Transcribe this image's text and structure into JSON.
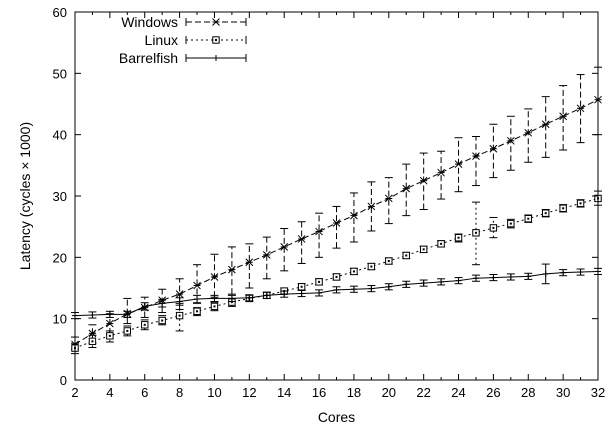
{
  "chart_data": {
    "type": "line",
    "title": "",
    "xlabel": "Cores",
    "ylabel": "Latency (cycles × 1000)",
    "xlim": [
      2,
      32
    ],
    "ylim": [
      0,
      60
    ],
    "x_ticks": [
      2,
      4,
      6,
      8,
      10,
      12,
      14,
      16,
      18,
      20,
      22,
      24,
      26,
      28,
      30,
      32
    ],
    "y_ticks": [
      0,
      10,
      20,
      30,
      40,
      50,
      60
    ],
    "grid": false,
    "legend_position": "top-left",
    "series": [
      {
        "name": "Windows",
        "marker": "asterisk",
        "line_style": "dashed",
        "points": [
          {
            "x": 2,
            "y": 5.8,
            "lo": 5.0,
            "hi": 7.0
          },
          {
            "x": 3,
            "y": 7.6,
            "lo": 6.0,
            "hi": 9.0
          },
          {
            "x": 4,
            "y": 9.2,
            "lo": 7.5,
            "hi": 10.8
          },
          {
            "x": 5,
            "y": 10.8,
            "lo": 9.2,
            "hi": 13.3
          },
          {
            "x": 6,
            "y": 11.8,
            "lo": 10.2,
            "hi": 13.5
          },
          {
            "x": 7,
            "y": 13.0,
            "lo": 11.0,
            "hi": 14.8
          },
          {
            "x": 8,
            "y": 14.0,
            "lo": 11.5,
            "hi": 16.5
          },
          {
            "x": 9,
            "y": 15.4,
            "lo": 12.5,
            "hi": 18.8
          },
          {
            "x": 10,
            "y": 16.8,
            "lo": 13.5,
            "hi": 20.5
          },
          {
            "x": 11,
            "y": 18.0,
            "lo": 14.0,
            "hi": 21.7
          },
          {
            "x": 12,
            "y": 19.2,
            "lo": 15.0,
            "hi": 22.2
          },
          {
            "x": 13,
            "y": 20.4,
            "lo": 16.5,
            "hi": 23.3
          },
          {
            "x": 14,
            "y": 21.7,
            "lo": 17.8,
            "hi": 24.7
          },
          {
            "x": 15,
            "y": 23.0,
            "lo": 19.0,
            "hi": 25.8
          },
          {
            "x": 16,
            "y": 24.2,
            "lo": 20.0,
            "hi": 27.2
          },
          {
            "x": 17,
            "y": 25.6,
            "lo": 21.5,
            "hi": 28.3
          },
          {
            "x": 18,
            "y": 26.8,
            "lo": 22.5,
            "hi": 30.5
          },
          {
            "x": 19,
            "y": 28.3,
            "lo": 24.3,
            "hi": 32.3
          },
          {
            "x": 20,
            "y": 29.6,
            "lo": 25.5,
            "hi": 33.0
          },
          {
            "x": 21,
            "y": 31.2,
            "lo": 26.8,
            "hi": 35.2
          },
          {
            "x": 22,
            "y": 32.5,
            "lo": 27.8,
            "hi": 37.0
          },
          {
            "x": 23,
            "y": 33.8,
            "lo": 29.5,
            "hi": 37.3
          },
          {
            "x": 24,
            "y": 35.2,
            "lo": 30.7,
            "hi": 39.5
          },
          {
            "x": 25,
            "y": 36.5,
            "lo": 31.7,
            "hi": 39.7
          },
          {
            "x": 26,
            "y": 37.7,
            "lo": 33.0,
            "hi": 41.7
          },
          {
            "x": 27,
            "y": 39.0,
            "lo": 34.2,
            "hi": 43.0
          },
          {
            "x": 28,
            "y": 40.3,
            "lo": 35.5,
            "hi": 44.2
          },
          {
            "x": 29,
            "y": 41.7,
            "lo": 36.3,
            "hi": 46.2
          },
          {
            "x": 30,
            "y": 43.0,
            "lo": 37.5,
            "hi": 48.0
          },
          {
            "x": 31,
            "y": 44.3,
            "lo": 38.7,
            "hi": 49.8
          },
          {
            "x": 32,
            "y": 45.7,
            "lo": 40.0,
            "hi": 51.0
          }
        ]
      },
      {
        "name": "Linux",
        "marker": "square",
        "line_style": "dotted",
        "points": [
          {
            "x": 2,
            "y": 5.2,
            "lo": 4.3,
            "hi": 6.0
          },
          {
            "x": 3,
            "y": 6.3,
            "lo": 5.3,
            "hi": 7.3
          },
          {
            "x": 4,
            "y": 7.2,
            "lo": 6.2,
            "hi": 8.0
          },
          {
            "x": 5,
            "y": 8.0,
            "lo": 7.2,
            "hi": 8.8
          },
          {
            "x": 6,
            "y": 9.0,
            "lo": 8.2,
            "hi": 9.8
          },
          {
            "x": 7,
            "y": 9.7,
            "lo": 9.0,
            "hi": 10.5
          },
          {
            "x": 8,
            "y": 10.5,
            "lo": 8.0,
            "hi": 12.5
          },
          {
            "x": 9,
            "y": 11.2,
            "lo": 10.5,
            "hi": 11.8
          },
          {
            "x": 10,
            "y": 12.0,
            "lo": 11.3,
            "hi": 12.7
          },
          {
            "x": 11,
            "y": 12.7,
            "lo": 12.0,
            "hi": 13.3
          },
          {
            "x": 12,
            "y": 13.3,
            "lo": 12.8,
            "hi": 13.8
          },
          {
            "x": 13,
            "y": 13.8,
            "lo": 13.3,
            "hi": 14.3
          },
          {
            "x": 14,
            "y": 14.5,
            "lo": 14.0,
            "hi": 15.0
          },
          {
            "x": 15,
            "y": 15.2,
            "lo": 14.7,
            "hi": 15.7
          },
          {
            "x": 16,
            "y": 16.0,
            "lo": 15.5,
            "hi": 16.5
          },
          {
            "x": 17,
            "y": 16.8,
            "lo": 16.3,
            "hi": 17.3
          },
          {
            "x": 18,
            "y": 17.7,
            "lo": 17.2,
            "hi": 18.2
          },
          {
            "x": 19,
            "y": 18.5,
            "lo": 18.0,
            "hi": 19.0
          },
          {
            "x": 20,
            "y": 19.4,
            "lo": 18.9,
            "hi": 19.9
          },
          {
            "x": 21,
            "y": 20.3,
            "lo": 19.8,
            "hi": 20.8
          },
          {
            "x": 22,
            "y": 21.3,
            "lo": 20.8,
            "hi": 21.8
          },
          {
            "x": 23,
            "y": 22.2,
            "lo": 21.7,
            "hi": 22.7
          },
          {
            "x": 24,
            "y": 23.2,
            "lo": 22.5,
            "hi": 23.8
          },
          {
            "x": 25,
            "y": 24.0,
            "lo": 18.8,
            "hi": 29.0
          },
          {
            "x": 26,
            "y": 24.8,
            "lo": 23.2,
            "hi": 26.5
          },
          {
            "x": 27,
            "y": 25.5,
            "lo": 24.8,
            "hi": 26.2
          },
          {
            "x": 28,
            "y": 26.3,
            "lo": 25.7,
            "hi": 26.9
          },
          {
            "x": 29,
            "y": 27.2,
            "lo": 26.6,
            "hi": 27.8
          },
          {
            "x": 30,
            "y": 28.0,
            "lo": 27.4,
            "hi": 28.6
          },
          {
            "x": 31,
            "y": 28.8,
            "lo": 28.2,
            "hi": 29.4
          },
          {
            "x": 32,
            "y": 29.6,
            "lo": 28.5,
            "hi": 30.8
          }
        ]
      },
      {
        "name": "Barrelfish",
        "marker": "plus",
        "line_style": "solid",
        "points": [
          {
            "x": 2,
            "y": 10.5,
            "lo": 10.0,
            "hi": 11.0
          },
          {
            "x": 3,
            "y": 10.6,
            "lo": 10.1,
            "hi": 11.1
          },
          {
            "x": 4,
            "y": 10.7,
            "lo": 10.2,
            "hi": 11.2
          },
          {
            "x": 5,
            "y": 10.7,
            "lo": 10.2,
            "hi": 11.2
          },
          {
            "x": 6,
            "y": 12.0,
            "lo": 11.4,
            "hi": 12.6
          },
          {
            "x": 7,
            "y": 12.5,
            "lo": 11.9,
            "hi": 13.1
          },
          {
            "x": 8,
            "y": 12.8,
            "lo": 12.2,
            "hi": 13.4
          },
          {
            "x": 9,
            "y": 13.2,
            "lo": 12.6,
            "hi": 13.8
          },
          {
            "x": 10,
            "y": 13.3,
            "lo": 12.8,
            "hi": 13.8
          },
          {
            "x": 11,
            "y": 13.3,
            "lo": 12.8,
            "hi": 13.8
          },
          {
            "x": 12,
            "y": 13.4,
            "lo": 12.9,
            "hi": 13.9
          },
          {
            "x": 13,
            "y": 13.8,
            "lo": 13.3,
            "hi": 14.3
          },
          {
            "x": 14,
            "y": 14.0,
            "lo": 13.5,
            "hi": 14.5
          },
          {
            "x": 15,
            "y": 14.1,
            "lo": 13.6,
            "hi": 14.6
          },
          {
            "x": 16,
            "y": 14.2,
            "lo": 13.7,
            "hi": 14.7
          },
          {
            "x": 17,
            "y": 14.7,
            "lo": 14.2,
            "hi": 15.2
          },
          {
            "x": 18,
            "y": 14.8,
            "lo": 14.3,
            "hi": 15.3
          },
          {
            "x": 19,
            "y": 14.9,
            "lo": 14.4,
            "hi": 15.4
          },
          {
            "x": 20,
            "y": 15.2,
            "lo": 14.7,
            "hi": 15.7
          },
          {
            "x": 21,
            "y": 15.6,
            "lo": 15.1,
            "hi": 16.1
          },
          {
            "x": 22,
            "y": 15.8,
            "lo": 15.3,
            "hi": 16.3
          },
          {
            "x": 23,
            "y": 16.0,
            "lo": 15.5,
            "hi": 16.5
          },
          {
            "x": 24,
            "y": 16.2,
            "lo": 15.7,
            "hi": 16.7
          },
          {
            "x": 25,
            "y": 16.6,
            "lo": 16.1,
            "hi": 17.1
          },
          {
            "x": 26,
            "y": 16.7,
            "lo": 16.2,
            "hi": 17.2
          },
          {
            "x": 27,
            "y": 16.8,
            "lo": 16.3,
            "hi": 17.3
          },
          {
            "x": 28,
            "y": 16.9,
            "lo": 16.4,
            "hi": 17.4
          },
          {
            "x": 29,
            "y": 17.3,
            "lo": 15.7,
            "hi": 18.9
          },
          {
            "x": 30,
            "y": 17.5,
            "lo": 17.0,
            "hi": 18.0
          },
          {
            "x": 31,
            "y": 17.6,
            "lo": 17.1,
            "hi": 18.1
          },
          {
            "x": 32,
            "y": 17.7,
            "lo": 17.2,
            "hi": 18.2
          }
        ]
      }
    ]
  }
}
